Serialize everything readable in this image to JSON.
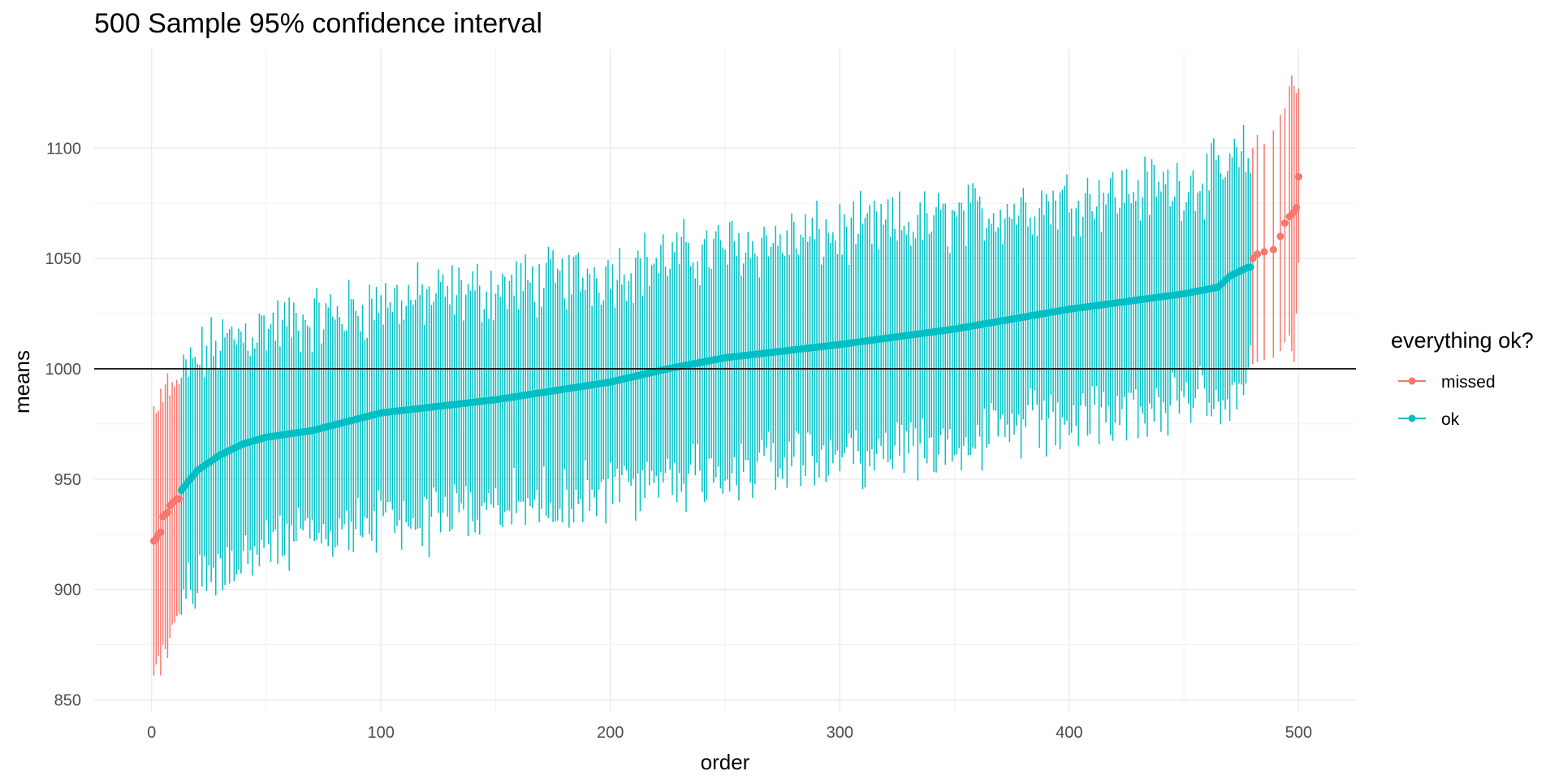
{
  "chart_data": {
    "type": "errorbar",
    "title": "500 Sample 95% confidence interval",
    "xlabel": "order",
    "ylabel": "means",
    "xlim": [
      -25,
      525
    ],
    "ylim": [
      845,
      1145
    ],
    "x_ticks": [
      0,
      100,
      200,
      300,
      400,
      500
    ],
    "y_ticks": [
      850,
      900,
      950,
      1000,
      1050,
      1100
    ],
    "reference_line": 1000,
    "grid": true,
    "legend": {
      "title": "everything ok?",
      "position": "right",
      "entries": [
        {
          "label": "missed",
          "color": "#F8766D"
        },
        {
          "label": "ok",
          "color": "#00BFC4"
        }
      ]
    },
    "n_samples": 500,
    "series": [
      {
        "name": "missed",
        "color": "#F8766D",
        "points": [
          {
            "x": 1,
            "mean": 922,
            "lower": 861,
            "upper": 983
          },
          {
            "x": 2,
            "mean": 923,
            "lower": 866,
            "upper": 980
          },
          {
            "x": 3,
            "mean": 925,
            "lower": 870,
            "upper": 981
          },
          {
            "x": 4,
            "mean": 926,
            "lower": 861,
            "upper": 991
          },
          {
            "x": 5,
            "mean": 933,
            "lower": 875,
            "upper": 985
          },
          {
            "x": 6,
            "mean": 934,
            "lower": 873,
            "upper": 993
          },
          {
            "x": 7,
            "mean": 935,
            "lower": 869,
            "upper": 998
          },
          {
            "x": 8,
            "mean": 938,
            "lower": 878,
            "upper": 988
          },
          {
            "x": 9,
            "mean": 939,
            "lower": 884,
            "upper": 994
          },
          {
            "x": 10,
            "mean": 940,
            "lower": 885,
            "upper": 992
          },
          {
            "x": 11,
            "mean": 941,
            "lower": 888,
            "upper": 995
          },
          {
            "x": 12,
            "mean": 941,
            "lower": 889,
            "upper": 993
          },
          {
            "x": 480,
            "mean": 1050,
            "lower": 1002,
            "upper": 1100
          },
          {
            "x": 482,
            "mean": 1052,
            "lower": 1003,
            "upper": 1106
          },
          {
            "x": 485,
            "mean": 1053,
            "lower": 1004,
            "upper": 1102
          },
          {
            "x": 489,
            "mean": 1054,
            "lower": 1005,
            "upper": 1108
          },
          {
            "x": 492,
            "mean": 1060,
            "lower": 1008,
            "upper": 1115
          },
          {
            "x": 494,
            "mean": 1066,
            "lower": 1012,
            "upper": 1118
          },
          {
            "x": 496,
            "mean": 1069,
            "lower": 1015,
            "upper": 1128
          },
          {
            "x": 497,
            "mean": 1070,
            "lower": 1008,
            "upper": 1133
          },
          {
            "x": 498,
            "mean": 1071,
            "lower": 1003,
            "upper": 1128
          },
          {
            "x": 499,
            "mean": 1073,
            "lower": 1025,
            "upper": 1125
          },
          {
            "x": 500,
            "mean": 1087,
            "lower": 1048,
            "upper": 1127
          }
        ]
      },
      {
        "name": "ok",
        "color": "#00BFC4",
        "mean_profile": [
          [
            13,
            945
          ],
          [
            20,
            954
          ],
          [
            30,
            961
          ],
          [
            40,
            966
          ],
          [
            50,
            969
          ],
          [
            70,
            972
          ],
          [
            100,
            980
          ],
          [
            150,
            986
          ],
          [
            200,
            994
          ],
          [
            225,
            1000
          ],
          [
            250,
            1005
          ],
          [
            300,
            1011
          ],
          [
            350,
            1018
          ],
          [
            400,
            1027
          ],
          [
            450,
            1034
          ],
          [
            465,
            1037
          ],
          [
            470,
            1042
          ],
          [
            478,
            1046
          ],
          [
            479,
            1046
          ]
        ],
        "half_width_range": [
          38,
          62
        ],
        "points_generated": "for every order 13-479 excluding the missed orders above"
      }
    ]
  }
}
